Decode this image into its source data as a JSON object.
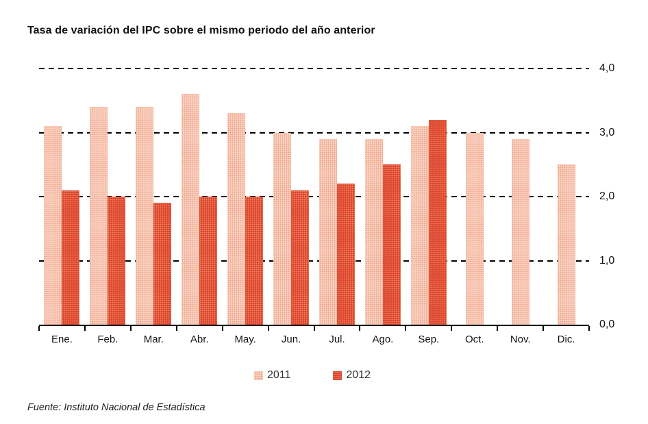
{
  "title": "Tasa de variación del IPC sobre el mismo periodo del año anterior",
  "source_note": "Fuente: Instituto Nacional de Estadística",
  "colors": {
    "series_2011": "#F5C9B8",
    "series_2012": "#D93A28",
    "axis": "#000000",
    "text": "#1a1a1a"
  },
  "legend": {
    "items": [
      {
        "label": "2011"
      },
      {
        "label": "2012"
      }
    ]
  },
  "y_axis": {
    "tick_labels": [
      "4,0",
      "3,0",
      "2,0",
      "1,0",
      "0,0"
    ],
    "tick_values": [
      4.0,
      3.0,
      2.0,
      1.0,
      0.0
    ]
  },
  "chart_data": {
    "type": "bar",
    "title": "Tasa de variación del IPC sobre el mismo periodo del año anterior",
    "categories": [
      "Ene.",
      "Feb.",
      "Mar.",
      "Abr.",
      "May.",
      "Jun.",
      "Jul.",
      "Ago.",
      "Sep.",
      "Oct.",
      "Nov.",
      "Dic."
    ],
    "series": [
      {
        "name": "2011",
        "values": [
          3.1,
          3.4,
          3.4,
          3.6,
          3.3,
          3.0,
          2.9,
          2.9,
          3.1,
          3.0,
          2.9,
          2.5
        ]
      },
      {
        "name": "2012",
        "values": [
          2.1,
          2.0,
          1.9,
          2.0,
          2.0,
          2.1,
          2.2,
          2.5,
          3.2,
          null,
          null,
          null
        ]
      }
    ],
    "xlabel": "",
    "ylabel": "",
    "ylim": [
      0,
      4
    ],
    "grid": "horizontal-dashed",
    "legend_position": "bottom",
    "source": "Fuente: Instituto Nacional de Estadística"
  }
}
